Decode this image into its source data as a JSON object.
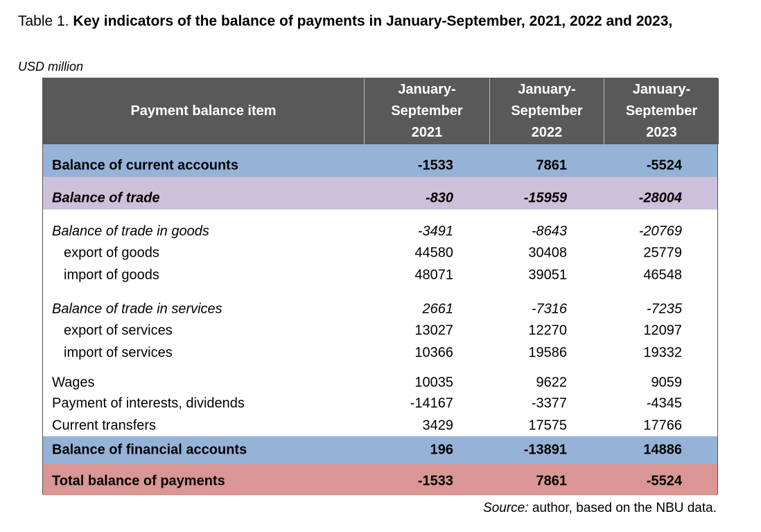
{
  "title": {
    "label": "Table 1.",
    "text": "Key indicators of the balance of payments in January-September, 2021, 2022 and 2023,"
  },
  "subtitle": "USD million",
  "table": {
    "header": [
      "Payment balance item",
      "January-September 2021",
      "January-September 2022",
      "January-September 2023"
    ],
    "rows": [
      [
        "Balance of current accounts",
        -1533,
        7861,
        -5524
      ],
      [
        "Balance of trade",
        -830,
        -15959,
        -28004
      ],
      [
        "Balance of trade in goods",
        -3491,
        -8643,
        -20769
      ],
      [
        "export of goods",
        44580,
        30408,
        25779
      ],
      [
        "import of goods",
        48071,
        39051,
        46548
      ],
      [
        "Balance of trade in services",
        2661,
        -7316,
        -7235
      ],
      [
        "export of services",
        13027,
        12270,
        12097
      ],
      [
        "import of services",
        10366,
        19586,
        19332
      ],
      [
        "Wages",
        10035,
        9622,
        9059
      ],
      [
        "Payment of interests, dividends",
        -14167,
        -3377,
        -4345
      ],
      [
        "Current transfers",
        3429,
        17575,
        17766
      ],
      [
        "Balance of financial accounts",
        196,
        -13891,
        14886
      ],
      [
        "Total balance of payments",
        -1533,
        7861,
        -5524
      ]
    ]
  },
  "source": {
    "label": "Source:",
    "text": "author, based on the NBU data."
  }
}
